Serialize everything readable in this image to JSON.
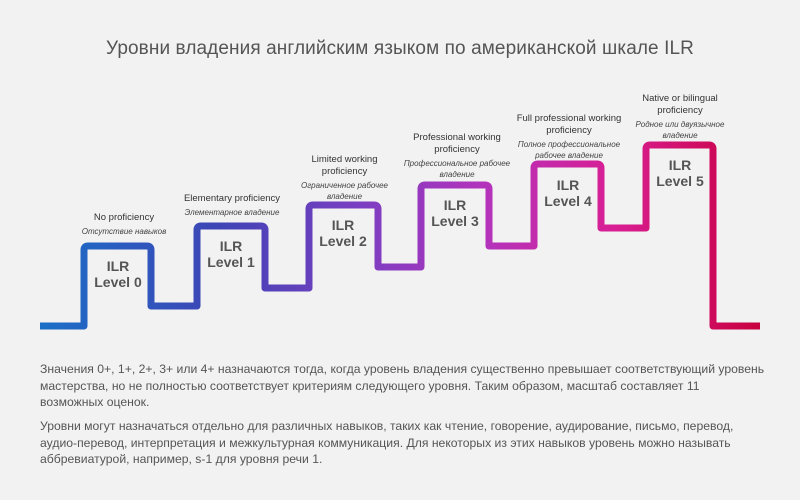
{
  "title": "Уровни владения английским языком по американской шкале ILR",
  "levels": [
    {
      "line1": "ILR",
      "line2": "Level 0",
      "en": "No proficiency",
      "ru": "Отсутствие навыков",
      "color": "#1e63b8"
    },
    {
      "line1": "ILR",
      "line2": "Level 1",
      "en": "Elementary proficiency",
      "ru": "Элементарное владение",
      "color": "#4b3fb0"
    },
    {
      "line1": "ILR",
      "line2": "Level 2",
      "en": "Limited working proficiency",
      "ru": "Ограниченное рабочее владение",
      "color": "#8a3cc0"
    },
    {
      "line1": "ILR",
      "line2": "Level 3",
      "en": "Professional working proficiency",
      "ru": "Профессиональное рабочее владение",
      "color": "#b533b9"
    },
    {
      "line1": "ILR",
      "line2": "Level 4",
      "en": "Full professional working proficiency",
      "ru": "Полное профессиональное рабочее владение",
      "color": "#d6208f"
    },
    {
      "line1": "ILR",
      "line2": "Level 5",
      "en": "Native or bilingual proficiency",
      "ru": "Родное или двуязычное владение",
      "color": "#c8003f"
    }
  ],
  "gradient": {
    "start": "#1a6fc7",
    "end": "#c8003f"
  },
  "paragraph1": "Значения 0+, 1+, 2+, 3+ или 4+ назначаются тогда, когда уровень владения существенно превышает соответствующий уровень мастерства, но не полностью соответствует критериям следующего уровня. Таким образом, масштаб составляет 11 возможных оценок.",
  "paragraph2": "Уровни могут назначаться отдельно для различных навыков, таких как чтение, говорение, аудирование, письмо, перевод, аудио-перевод, интерпретация и межкультурная коммуникация. Для некоторых из этих навыков уровень можно называть аббревиатурой, например, s-1 для уровня речи 1."
}
